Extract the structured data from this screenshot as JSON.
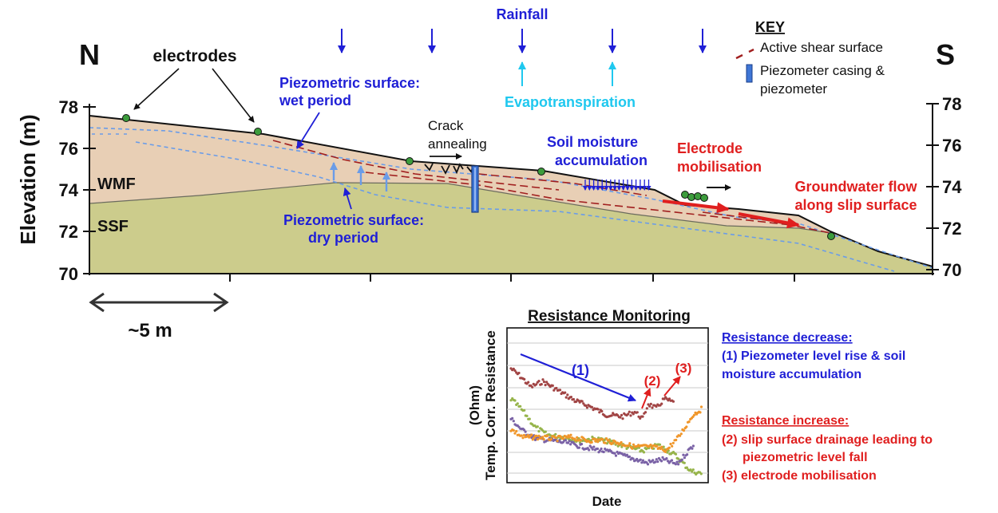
{
  "directions": {
    "north": "N",
    "south": "S"
  },
  "axis": {
    "ylabel": "Elevation (m)",
    "ticks": [
      "78",
      "76",
      "74",
      "72",
      "70"
    ],
    "right_ticks": [
      "78",
      "76",
      "74",
      "72",
      "70"
    ],
    "scale_label": "~5 m"
  },
  "labels": {
    "electrodes": "electrodes",
    "rainfall": "Rainfall",
    "evapotranspiration": "Evapotranspiration",
    "piezo_wet_1": "Piezometric surface:",
    "piezo_wet_2": "wet period",
    "piezo_dry_1": "Piezometric surface:",
    "piezo_dry_2": "dry period",
    "crack_1": "Crack",
    "crack_2": "annealing",
    "soil_1": "Soil moisture",
    "soil_2": "accumulation",
    "electrode_mob_1": "Electrode",
    "electrode_mob_2": "mobilisation",
    "gw_1": "Groundwater flow",
    "gw_2": "along slip surface",
    "wmf": "WMF",
    "ssf": "SSF"
  },
  "key": {
    "title": "KEY",
    "shear": "Active shear surface",
    "piezo_1": "Piezometer casing &",
    "piezo_2": "piezometer"
  },
  "inset": {
    "title": "Resistance Monitoring",
    "ylabel_1": "Temp. Corr. Resistance",
    "ylabel_2": "(Ohm)",
    "xlabel": "Date",
    "marker_1": "(1)",
    "marker_2": "(2)",
    "marker_3": "(3)"
  },
  "notes": {
    "decrease_title": "Resistance decrease:",
    "decrease_1a": "(1) Piezometer level rise & soil",
    "decrease_1b": "moisture accumulation",
    "increase_title": "Resistance increase:",
    "increase_2a": "(2) slip surface drainage leading to",
    "increase_2b": "piezometric level fall",
    "increase_3": "(3) electrode mobilisation"
  },
  "colors": {
    "wmf": "#e8cfb5",
    "ssf": "#cccc8c",
    "rainfall": "#1f1fd6",
    "evapotranspiration": "#1fc8ef",
    "piezometric_line": "#6a9ce8",
    "shear_surface": "#a11f1f",
    "electrode": "#3c9c3c",
    "increase": "#e01f1f",
    "series_red": "#a14444",
    "series_green": "#96b44a",
    "series_purple": "#7a62a6",
    "series_orange": "#f0962a"
  }
}
